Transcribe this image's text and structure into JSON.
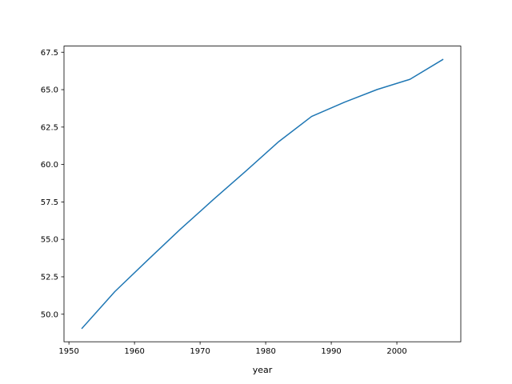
{
  "chart_data": {
    "type": "line",
    "x_label": "year",
    "x": [
      1952,
      1957,
      1962,
      1967,
      1972,
      1977,
      1982,
      1987,
      1992,
      1997,
      2002,
      2007
    ],
    "series": [
      {
        "color": "#1f77b4",
        "values": [
          49.06,
          51.51,
          53.61,
          55.68,
          57.65,
          59.57,
          61.53,
          63.21,
          64.16,
          65.01,
          65.69,
          67.01
        ]
      }
    ],
    "xlim": [
      1949.25,
      2009.75
    ],
    "xticks": [
      1950,
      1960,
      1970,
      1980,
      1990,
      2000
    ],
    "ylim": [
      48.16,
      67.91
    ],
    "yticks": [
      {
        "value": 50,
        "label": "50.0"
      },
      52.5,
      {
        "value": 55,
        "label": "55.0"
      },
      57.5,
      {
        "value": 60,
        "label": "60.0"
      },
      62.5,
      {
        "value": 65,
        "label": "65.0"
      },
      67.5
    ],
    "grid": false
  }
}
